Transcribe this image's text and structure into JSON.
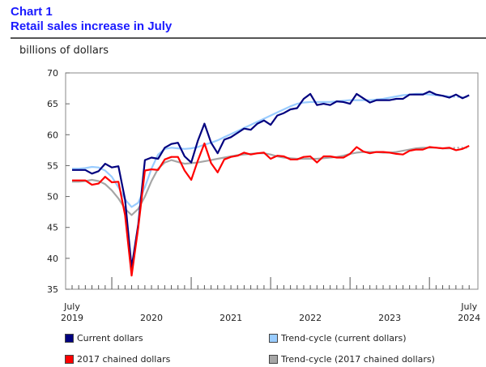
{
  "chart_data": {
    "type": "line",
    "title_line1": "Chart 1",
    "title": "Retail sales increase in July",
    "ylabel": "billions of dollars",
    "ylim": [
      35,
      70
    ],
    "yticks": [
      35,
      40,
      45,
      50,
      55,
      60,
      65,
      70
    ],
    "x_start": "2019-07",
    "x_end": "2024-07",
    "xtick_labels": [
      {
        "month": "2019-07",
        "lines": [
          "July",
          "2019"
        ]
      },
      {
        "month": "2020-07",
        "lines": [
          "",
          "2020"
        ]
      },
      {
        "month": "2021-07",
        "lines": [
          "",
          "2021"
        ]
      },
      {
        "month": "2022-07",
        "lines": [
          "",
          "2022"
        ]
      },
      {
        "month": "2023-07",
        "lines": [
          "",
          "2023"
        ]
      },
      {
        "month": "2024-07",
        "lines": [
          "July",
          "2024"
        ]
      }
    ],
    "grid": false,
    "legend_placement": "bottom",
    "series": [
      {
        "name": "Current dollars",
        "color": "#00007f",
        "style": "solid",
        "values": [
          54.3,
          54.3,
          54.3,
          53.7,
          54.1,
          55.3,
          54.7,
          54.9,
          49.5,
          38.5,
          45.5,
          55.9,
          56.3,
          56.1,
          57.9,
          58.5,
          58.7,
          56.5,
          55.5,
          59.0,
          61.8,
          58.7,
          57.0,
          59.2,
          59.6,
          60.3,
          61.0,
          60.8,
          61.8,
          62.3,
          61.6,
          63.1,
          63.5,
          64.1,
          64.3,
          65.8,
          66.6,
          64.8,
          65.0,
          64.8,
          65.4,
          65.3,
          65.0,
          66.6,
          65.9,
          65.2,
          65.6,
          65.6,
          65.6,
          65.8,
          65.8,
          66.5,
          66.5,
          66.5,
          67.0,
          66.5,
          66.3,
          66.0,
          66.5,
          65.9,
          66.4
        ]
      },
      {
        "name": "Trend-cycle (current dollars)",
        "color": "#99ccff",
        "style": "trend",
        "values": [
          54.5,
          54.5,
          54.6,
          54.8,
          54.7,
          54.2,
          53.2,
          51.5,
          49.5,
          48.3,
          49.0,
          51.5,
          54.5,
          56.8,
          57.7,
          57.9,
          57.8,
          57.7,
          57.8,
          58.0,
          58.4,
          58.7,
          59.1,
          59.6,
          60.1,
          60.6,
          61.1,
          61.6,
          62.1,
          62.6,
          63.1,
          63.6,
          64.1,
          64.6,
          65.0,
          65.2,
          65.3,
          65.3,
          65.3,
          65.3,
          65.4,
          65.5,
          65.6,
          65.6,
          65.6,
          65.6,
          65.7,
          65.8,
          66.0,
          66.2,
          66.4,
          66.5,
          66.6,
          66.6,
          66.5,
          66.4,
          66.3,
          66.2,
          66.1,
          66.1,
          66.1
        ]
      },
      {
        "name": "2017 chained dollars",
        "color": "#ff0000",
        "style": "solid",
        "values": [
          52.6,
          52.6,
          52.6,
          51.9,
          52.1,
          53.2,
          52.3,
          52.4,
          47.0,
          37.2,
          45.0,
          54.2,
          54.4,
          54.3,
          56.0,
          56.4,
          56.4,
          54.2,
          52.7,
          55.8,
          58.6,
          55.4,
          53.9,
          56.0,
          56.4,
          56.6,
          57.1,
          56.8,
          57.0,
          57.1,
          56.1,
          56.6,
          56.5,
          56.0,
          56.0,
          56.4,
          56.5,
          55.5,
          56.5,
          56.5,
          56.3,
          56.3,
          56.9,
          58.0,
          57.3,
          57.0,
          57.2,
          57.2,
          57.1,
          56.9,
          56.8,
          57.4,
          57.6,
          57.6,
          58.0,
          57.9,
          57.8,
          57.9,
          57.5,
          57.7,
          58.2
        ]
      },
      {
        "name": "Trend-cycle (2017 chained dollars)",
        "color": "#a6a6a6",
        "style": "trend",
        "values": [
          52.4,
          52.4,
          52.5,
          52.7,
          52.5,
          52.0,
          51.0,
          49.7,
          48.0,
          47.0,
          48.0,
          50.0,
          52.5,
          54.5,
          55.5,
          55.9,
          55.6,
          55.3,
          55.4,
          55.5,
          55.7,
          55.9,
          56.1,
          56.3,
          56.5,
          56.7,
          56.8,
          56.9,
          57.0,
          57.0,
          56.8,
          56.5,
          56.3,
          56.2,
          56.1,
          56.1,
          56.1,
          56.1,
          56.2,
          56.3,
          56.4,
          56.6,
          56.9,
          57.1,
          57.2,
          57.2,
          57.2,
          57.1,
          57.1,
          57.2,
          57.4,
          57.6,
          57.8,
          57.9,
          57.9,
          57.9,
          57.8,
          57.8,
          57.9,
          57.9,
          57.9
        ]
      }
    ]
  }
}
